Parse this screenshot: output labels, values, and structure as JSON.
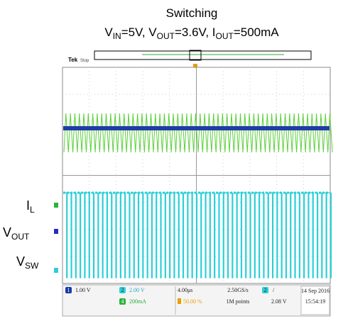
{
  "title": "Switching",
  "conditions": [
    {
      "text": "V"
    },
    {
      "text": "IN",
      "sub": true
    },
    {
      "text": "=5V, V"
    },
    {
      "text": "OUT",
      "sub": true
    },
    {
      "text": "=3.6V, I"
    },
    {
      "text": "OUT",
      "sub": true
    },
    {
      "text": "=500mA"
    }
  ],
  "header": {
    "brand": "Tek",
    "state": "Stop"
  },
  "channels": [
    {
      "symbol": "I",
      "sub": "L"
    },
    {
      "symbol": "V",
      "sub": "OUT"
    },
    {
      "symbol": "V",
      "sub": "SW"
    }
  ],
  "status": {
    "ch1": {
      "number": "1",
      "scale": "1.00 V"
    },
    "ch2": {
      "number": "2",
      "scale": "2.00 V"
    },
    "ch4": {
      "number": "4",
      "scale": "200mA"
    },
    "timebase": "4.00μs",
    "offset": "50.00 %",
    "rate": "2.50GS/s",
    "points": "1M points",
    "trigger": {
      "number": "2",
      "slope": "/",
      "level": "2.08 V"
    },
    "date": "14 Sep 2016",
    "time": "15:54:19"
  }
}
